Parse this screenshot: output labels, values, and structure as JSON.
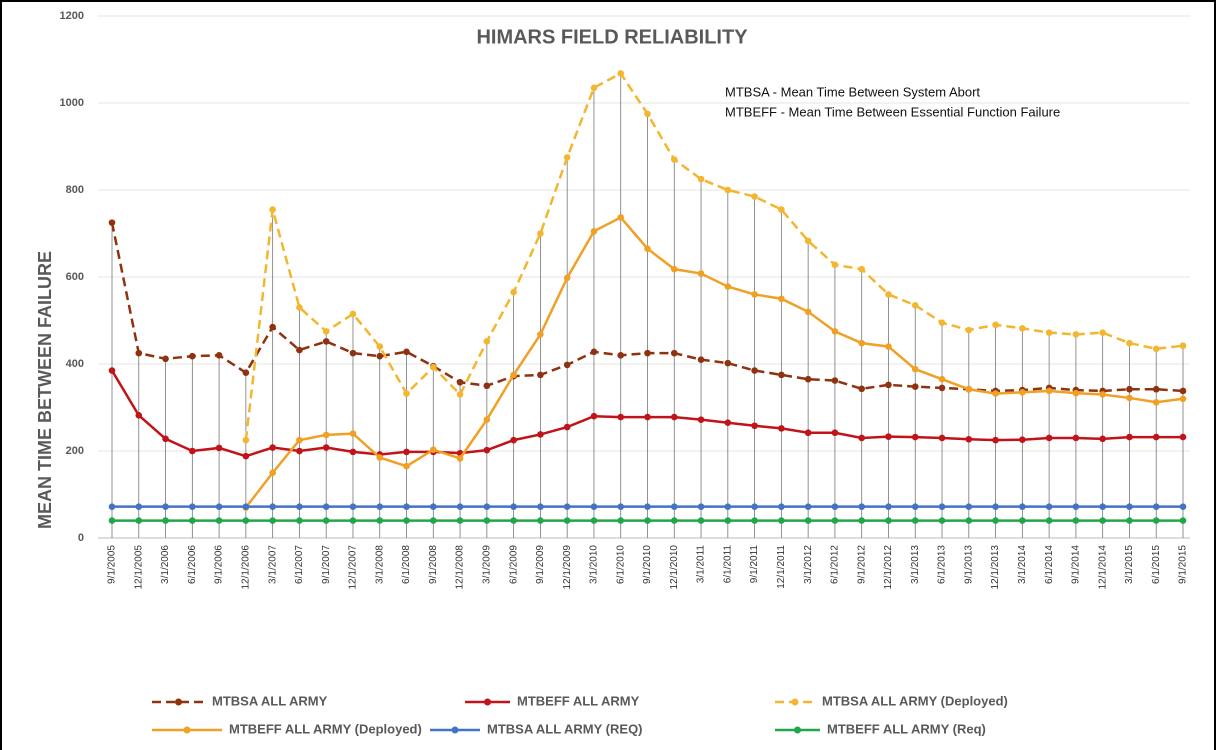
{
  "chart_data": {
    "type": "line",
    "title": "HIMARS FIELD RELIABILITY",
    "annotations": [
      "MTBSA - Mean Time Between System Abort",
      "MTBEFF -  Mean Time Between Essential Function Failure"
    ],
    "y_label": "MEAN TIME BETWEEN FAILURE",
    "categories": [
      "9/1/2005",
      "12/1/2005",
      "3/1/2006",
      "6/1/2006",
      "9/1/2006",
      "12/1/2006",
      "3/1/2007",
      "6/1/2007",
      "9/1/2007",
      "12/1/2007",
      "3/1/2008",
      "6/1/2008",
      "9/1/2008",
      "12/1/2008",
      "3/1/2009",
      "6/1/2009",
      "9/1/2009",
      "12/1/2009",
      "3/1/2010",
      "6/1/2010",
      "9/1/2010",
      "12/1/2010",
      "3/1/2011",
      "6/1/2011",
      "9/1/2011",
      "12/1/2011",
      "3/1/2012",
      "6/1/2012",
      "9/1/2012",
      "12/1/2012",
      "3/1/2013",
      "6/1/2013",
      "9/1/2013",
      "12/1/2013",
      "3/1/2014",
      "6/1/2014",
      "9/1/2014",
      "12/1/2014",
      "3/1/2015",
      "6/1/2015",
      "9/1/2015"
    ],
    "ylim": [
      0,
      1200
    ],
    "yticks": [
      0,
      200,
      400,
      600,
      800,
      1000,
      1200
    ],
    "grid": true,
    "legend": "bottom",
    "series": [
      {
        "name": "MTBSA ALL ARMY",
        "color": "#8e3210",
        "dashed": true,
        "values": [
          725,
          425,
          412,
          418,
          420,
          380,
          485,
          432,
          452,
          425,
          418,
          428,
          395,
          358,
          350,
          372,
          375,
          398,
          428,
          420,
          425,
          425,
          410,
          402,
          385,
          375,
          365,
          362,
          343,
          352,
          348,
          345,
          342,
          338,
          340,
          345,
          340,
          338,
          342,
          342,
          338
        ]
      },
      {
        "name": "MTBEFF ALL ARMY",
        "color": "#c0141a",
        "dashed": false,
        "values": [
          385,
          282,
          228,
          200,
          207,
          188,
          208,
          200,
          208,
          198,
          192,
          198,
          198,
          195,
          202,
          225,
          238,
          255,
          280,
          278,
          278,
          278,
          272,
          265,
          258,
          252,
          242,
          242,
          230,
          233,
          232,
          230,
          227,
          225,
          226,
          230,
          230,
          228,
          232,
          232,
          232
        ]
      },
      {
        "name": "MTBSA ALL ARMY (Deployed)",
        "color": "#f3b630",
        "dashed": true,
        "values": [
          null,
          null,
          null,
          null,
          null,
          225,
          755,
          530,
          475,
          515,
          440,
          332,
          393,
          330,
          452,
          565,
          700,
          875,
          1035,
          1068,
          975,
          870,
          825,
          800,
          785,
          755,
          683,
          628,
          618,
          560,
          535,
          495,
          478,
          490,
          482,
          472,
          468,
          472,
          448,
          435,
          442
        ]
      },
      {
        "name": "MTBEFF ALL ARMY (Deployed)",
        "color": "#f0a024",
        "dashed": false,
        "values": [
          null,
          null,
          null,
          null,
          null,
          70,
          150,
          225,
          237,
          240,
          185,
          165,
          203,
          183,
          272,
          375,
          468,
          598,
          705,
          737,
          665,
          618,
          608,
          578,
          560,
          550,
          520,
          475,
          448,
          440,
          388,
          365,
          342,
          332,
          335,
          338,
          333,
          330,
          322,
          312,
          320
        ]
      },
      {
        "name": "MTBSA ALL ARMY (REQ)",
        "color": "#4472c4",
        "dashed": false,
        "values": [
          72,
          72,
          72,
          72,
          72,
          72,
          72,
          72,
          72,
          72,
          72,
          72,
          72,
          72,
          72,
          72,
          72,
          72,
          72,
          72,
          72,
          72,
          72,
          72,
          72,
          72,
          72,
          72,
          72,
          72,
          72,
          72,
          72,
          72,
          72,
          72,
          72,
          72,
          72,
          72,
          72
        ]
      },
      {
        "name": "MTBEFF ALL ARMY (Req)",
        "color": "#21a64a",
        "dashed": false,
        "values": [
          40,
          40,
          40,
          40,
          40,
          40,
          40,
          40,
          40,
          40,
          40,
          40,
          40,
          40,
          40,
          40,
          40,
          40,
          40,
          40,
          40,
          40,
          40,
          40,
          40,
          40,
          40,
          40,
          40,
          40,
          40,
          40,
          40,
          40,
          40,
          40,
          40,
          40,
          40,
          40,
          40
        ]
      }
    ]
  }
}
